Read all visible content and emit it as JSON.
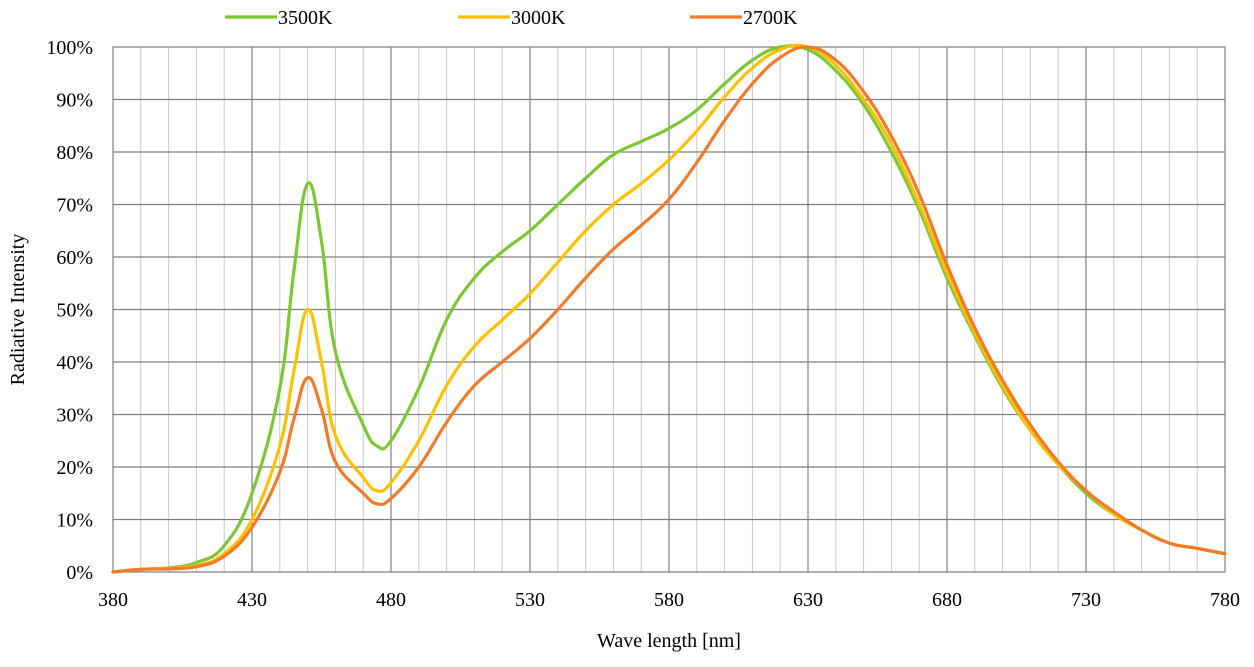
{
  "chart_data": {
    "type": "line",
    "title": "",
    "xlabel": "Wave length [nm]",
    "ylabel": "Radiative Intensity",
    "xlim": [
      380,
      780
    ],
    "ylim": [
      0,
      100
    ],
    "x_major_ticks": [
      380,
      430,
      480,
      530,
      580,
      630,
      680,
      730,
      780
    ],
    "x_minor_step": 10,
    "y_ticks": [
      0,
      10,
      20,
      30,
      40,
      50,
      60,
      70,
      80,
      90,
      100
    ],
    "x_tick_labels": [
      "380",
      "430",
      "480",
      "530",
      "580",
      "630",
      "680",
      "730",
      "780"
    ],
    "y_tick_labels": [
      "0%",
      "10%",
      "20%",
      "30%",
      "40%",
      "50%",
      "60%",
      "70%",
      "80%",
      "90%",
      "100%"
    ],
    "grid": true,
    "legend_position": "top",
    "x": [
      380,
      390,
      400,
      410,
      420,
      430,
      440,
      445,
      450,
      455,
      460,
      470,
      475,
      480,
      490,
      500,
      510,
      520,
      530,
      540,
      550,
      560,
      570,
      580,
      590,
      600,
      610,
      620,
      630,
      640,
      650,
      660,
      670,
      680,
      690,
      700,
      710,
      720,
      730,
      740,
      750,
      760,
      770,
      780
    ],
    "series": [
      {
        "name": "3500K",
        "color": "#7dc734",
        "values": [
          0,
          0.5,
          0.8,
          1.8,
          5,
          15,
          35,
          57,
          74,
          63,
          42,
          28,
          24,
          25,
          35,
          48,
          56,
          61,
          65,
          70,
          75,
          79.5,
          82,
          84.5,
          88,
          93,
          97.5,
          100,
          99.5,
          95.5,
          89,
          80,
          69,
          56,
          45,
          35,
          27,
          20.5,
          15,
          11,
          8,
          5.5,
          4.5,
          3.5
        ]
      },
      {
        "name": "3000K",
        "color": "#ffc000",
        "values": [
          0,
          0.5,
          0.7,
          1.2,
          3.5,
          10,
          24,
          38,
          50,
          40,
          26,
          18,
          15.5,
          17,
          25,
          35.5,
          43,
          48,
          53,
          59,
          65,
          70,
          74,
          78.5,
          84,
          90.5,
          96,
          99.5,
          100,
          96.5,
          90,
          81.5,
          70,
          57,
          45.5,
          35.5,
          27,
          20.5,
          15.5,
          11,
          8,
          5.5,
          4.5,
          3.5
        ]
      },
      {
        "name": "2700K",
        "color": "#ef7b2d",
        "values": [
          0,
          0.5,
          0.6,
          1.0,
          3,
          8.5,
          19,
          29,
          37,
          31,
          21,
          15,
          13,
          14,
          20,
          28.5,
          35.5,
          40,
          44.5,
          50,
          56,
          61.5,
          66,
          71,
          78,
          86,
          93,
          98,
          100,
          97.5,
          91.5,
          83,
          72,
          58.5,
          46.5,
          36.5,
          28,
          21,
          15.5,
          11.5,
          8,
          5.5,
          4.5,
          3.5
        ]
      }
    ]
  }
}
